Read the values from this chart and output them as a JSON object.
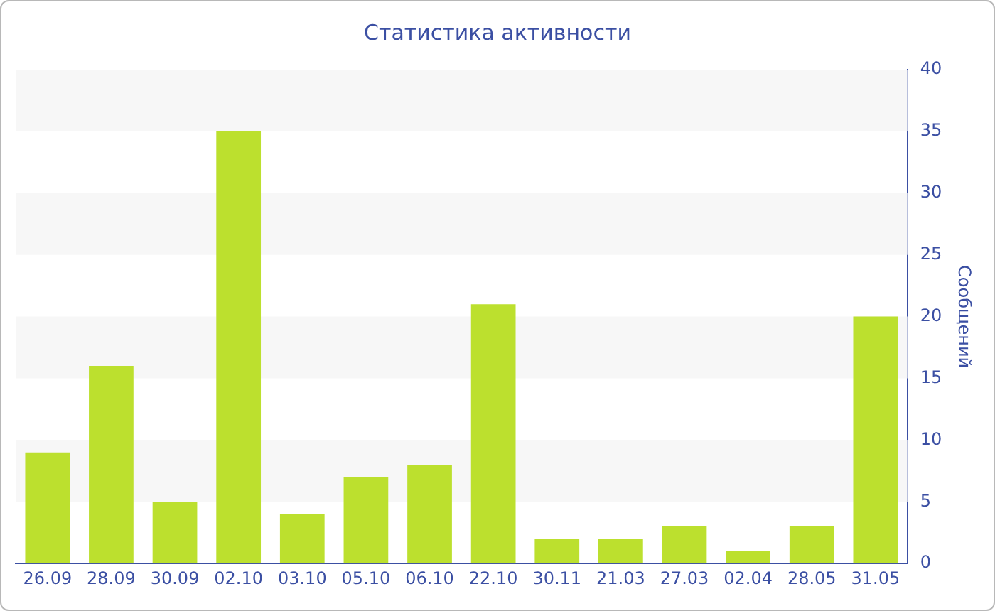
{
  "chart_data": {
    "type": "bar",
    "title": "Статистика активности",
    "ylabel": "Сообщений",
    "categories": [
      "26.09",
      "28.09",
      "30.09",
      "02.10",
      "03.10",
      "05.10",
      "06.10",
      "22.10",
      "30.11",
      "21.03",
      "27.03",
      "02.04",
      "28.05",
      "31.05"
    ],
    "values": [
      9,
      16,
      5,
      35,
      4,
      7,
      8,
      21,
      2,
      2,
      3,
      1,
      3,
      20
    ],
    "color": "#bce02e",
    "ylim": [
      0,
      40
    ],
    "yticks": [
      0,
      5,
      10,
      15,
      20,
      25,
      30,
      35,
      40
    ],
    "legend": false,
    "bands": [
      {
        "axis": "y",
        "from": 5,
        "to": 10,
        "color": "#f7f7f7"
      },
      {
        "axis": "y",
        "from": 15,
        "to": 20,
        "color": "#f7f7f7"
      },
      {
        "axis": "y",
        "from": 25,
        "to": 30,
        "color": "#f7f7f7"
      },
      {
        "axis": "y",
        "from": 35,
        "to": 40,
        "color": "#f7f7f7"
      }
    ]
  }
}
